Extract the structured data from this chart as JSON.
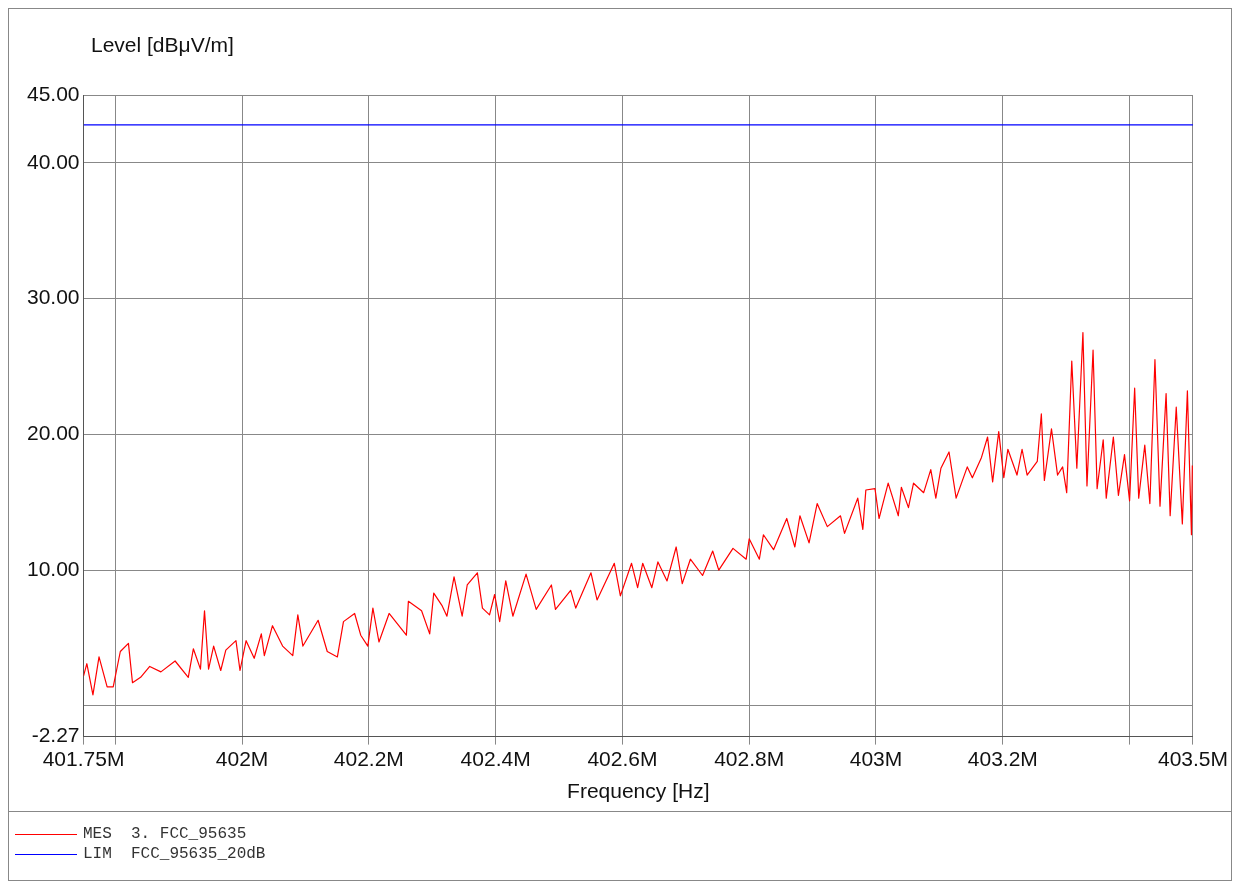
{
  "chart_data": {
    "type": "line",
    "xlabel": "Frequency [Hz]",
    "ylabel": "Level [dBμV/m]",
    "xlim": [
      401750000,
      403500000
    ],
    "xticks": [
      {
        "value": 401750000,
        "label": "401.75M"
      },
      {
        "value": 401800000,
        "label": null
      },
      {
        "value": 402000000,
        "label": "402M"
      },
      {
        "value": 402200000,
        "label": "402.2M"
      },
      {
        "value": 402400000,
        "label": "402.4M"
      },
      {
        "value": 402600000,
        "label": "402.6M"
      },
      {
        "value": 402800000,
        "label": "402.8M"
      },
      {
        "value": 403000000,
        "label": "403M"
      },
      {
        "value": 403200000,
        "label": "403.2M"
      },
      {
        "value": 403400000,
        "label": null
      },
      {
        "value": 403500000,
        "label": "403.5M"
      }
    ],
    "ylim": [
      -2.27,
      45
    ],
    "yticks": [
      -2.27,
      {
        "value": 0,
        "label": null
      },
      {
        "value": 10,
        "label": "10.00"
      },
      {
        "value": 20,
        "label": "20.00"
      },
      {
        "value": 30,
        "label": "30.00"
      },
      {
        "value": 40,
        "label": "40.00"
      },
      {
        "value": 45,
        "label": "45.00"
      }
    ],
    "grid": true,
    "legend": "bottom",
    "marker": "none",
    "line_style": "solid",
    "series": [
      {
        "name": "MES  3. FCC_95635",
        "color": "#ff0000",
        "x": [
          401750000,
          401755200,
          401764800,
          401774400,
          401787200,
          401796800,
          401808000,
          401820800,
          401827200,
          401840000,
          401854400,
          401872000,
          401894400,
          401915200,
          401923200,
          401934400,
          401940800,
          401947200,
          401955200,
          401966400,
          401974400,
          401990400,
          401996800,
          402006400,
          402019200,
          402030400,
          402035200,
          402048000,
          402064000,
          402080000,
          402088000,
          402096000,
          402120000,
          402134400,
          402150400,
          402160000,
          402177600,
          402187200,
          402198400,
          402206400,
          402216000,
          402232000,
          402259200,
          402262400,
          402283200,
          402296000,
          402302400,
          402315200,
          402323200,
          402334400,
          402347200,
          402355200,
          402371200,
          402379200,
          402390400,
          402398400,
          402406400,
          402416000,
          402427200,
          402448000,
          402464000,
          402488000,
          402494400,
          402518400,
          402526400,
          402550400,
          402560000,
          402587200,
          402596800,
          402614400,
          402624000,
          402632000,
          402646400,
          402656000,
          402670400,
          402684800,
          402694400,
          402707200,
          402726400,
          402742400,
          402752000,
          402774400,
          402795200,
          402800000,
          402816000,
          402822400,
          402838400,
          402859200,
          402872000,
          402880000,
          402894400,
          402907200,
          402923200,
          402944000,
          402950400,
          402971200,
          402979200,
          402984000,
          402998400,
          403004800,
          403019200,
          403035200,
          403040000,
          403051200,
          403059200,
          403075200,
          403086400,
          403094400,
          403102400,
          403115200,
          403126400,
          403144000,
          403152000,
          403166400,
          403176000,
          403184000,
          403193600,
          403201600,
          403208000,
          403222400,
          403230400,
          403238400,
          403254400,
          403260800,
          403265600,
          403276800,
          403286400,
          403294400,
          403300800,
          403308800,
          403316800,
          403326400,
          403332800,
          403342400,
          403348800,
          403358400,
          403363200,
          403374400,
          403382400,
          403392000,
          403400000,
          403408000,
          403414400,
          403424000,
          403432000,
          403440000,
          403448000,
          403457600,
          403464000,
          403473600,
          403483200,
          403491200,
          403497600,
          403499000
        ],
        "values": [
          2.2,
          3.1,
          0.8,
          3.6,
          1.4,
          1.4,
          4.0,
          4.6,
          1.7,
          2.1,
          2.9,
          2.5,
          3.3,
          2.1,
          4.2,
          2.7,
          7.0,
          2.7,
          4.4,
          2.6,
          4.1,
          4.8,
          2.6,
          4.8,
          3.5,
          5.3,
          3.7,
          5.9,
          4.4,
          3.7,
          6.7,
          4.4,
          6.3,
          4.0,
          3.6,
          6.2,
          6.8,
          5.2,
          4.4,
          7.2,
          4.7,
          6.8,
          5.2,
          7.7,
          7.0,
          5.3,
          8.3,
          7.4,
          6.6,
          9.5,
          6.6,
          8.9,
          9.8,
          7.2,
          6.7,
          8.2,
          6.2,
          9.2,
          6.6,
          9.7,
          7.1,
          8.9,
          7.1,
          8.5,
          7.2,
          9.8,
          7.8,
          10.5,
          8.1,
          10.5,
          8.7,
          10.5,
          8.7,
          10.6,
          9.2,
          11.7,
          9.0,
          10.8,
          9.6,
          11.4,
          10.0,
          11.6,
          10.8,
          12.3,
          10.8,
          12.6,
          11.5,
          13.8,
          11.7,
          14.0,
          12.0,
          14.9,
          13.2,
          14.0,
          12.7,
          15.3,
          13.0,
          15.9,
          16.0,
          13.8,
          16.4,
          14.0,
          16.1,
          14.6,
          16.4,
          15.7,
          17.4,
          15.3,
          17.5,
          18.7,
          15.3,
          17.6,
          16.8,
          18.3,
          19.8,
          16.5,
          20.2,
          16.8,
          18.9,
          17.0,
          18.9,
          17.0,
          18.0,
          21.5,
          16.6,
          20.4,
          17.0,
          17.6,
          15.7,
          25.4,
          17.5,
          27.5,
          16.2,
          26.2,
          16.0,
          19.6,
          15.3,
          19.8,
          15.5,
          18.5,
          15.1,
          23.4,
          15.3,
          19.2,
          14.9,
          25.5,
          14.7,
          23.0,
          14.0,
          22.0,
          13.4,
          23.2,
          12.6,
          17.7
        ]
      },
      {
        "name": "LIM  FCC_95635_20dB",
        "color": "#0000ff",
        "x": [
          401750000,
          403500000
        ],
        "values": [
          42.8,
          42.8
        ]
      }
    ]
  }
}
